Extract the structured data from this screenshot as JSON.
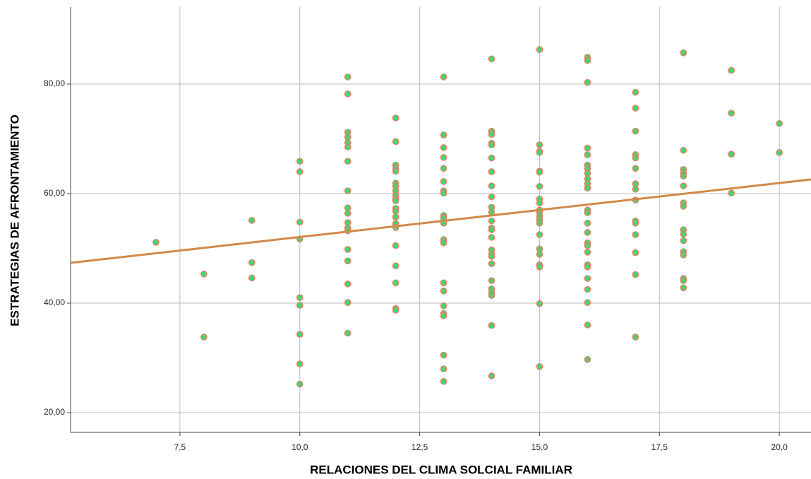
{
  "chart_data": {
    "type": "scatter",
    "x_label": "RELACIONES DEL CLIMA SOLCIAL FAMILIAR",
    "y_label": "ESTRATEGIAS DE AFRONTAMIENTO",
    "xlim": [
      5.22,
      20.66
    ],
    "ylim": [
      16.39,
      94.06
    ],
    "xticks": [
      {
        "value": 7.5,
        "label": "7,5"
      },
      {
        "value": 10,
        "label": "10,0"
      },
      {
        "value": 12.5,
        "label": "12,5"
      },
      {
        "value": 15,
        "label": "15,0"
      },
      {
        "value": 17.5,
        "label": "17,5"
      },
      {
        "value": 20,
        "label": "20,0"
      }
    ],
    "yticks": [
      {
        "value": 20,
        "label": "20,00"
      },
      {
        "value": 40,
        "label": "40,00"
      },
      {
        "value": 60,
        "label": "60,00"
      },
      {
        "value": 80,
        "label": "80,00"
      }
    ],
    "grid": true,
    "color": "#4fd26a",
    "edge_color": "#e57b6b",
    "x": [
      7,
      8,
      8,
      9,
      9,
      9,
      10,
      10,
      10,
      10,
      10,
      10,
      10,
      10,
      10,
      11,
      11,
      11,
      11,
      11,
      11,
      11,
      11,
      11,
      11,
      11,
      11,
      11,
      11,
      11,
      11,
      11,
      11,
      12,
      12,
      12,
      12,
      12,
      12,
      12,
      12,
      12,
      12,
      12,
      12,
      12,
      12,
      12,
      12,
      12,
      12,
      12,
      12,
      12,
      13,
      13,
      13,
      13,
      13,
      13,
      13,
      13,
      13,
      13,
      13,
      13,
      13,
      13,
      13,
      13,
      13,
      13,
      13,
      13,
      13,
      14,
      14,
      14,
      14,
      14,
      14,
      14,
      14,
      14,
      14,
      14,
      14,
      14,
      14,
      14,
      14,
      14,
      14,
      14,
      14,
      14,
      14,
      14,
      14,
      14,
      15,
      15,
      15,
      15,
      15,
      15,
      15,
      15,
      15,
      15,
      15,
      15,
      15,
      15,
      15,
      15,
      15,
      15,
      15,
      15,
      15,
      16,
      16,
      16,
      16,
      16,
      16,
      16,
      16,
      16,
      16,
      16,
      16,
      16,
      16,
      16,
      16,
      16,
      16,
      16,
      16,
      16,
      16,
      16,
      16,
      16,
      17,
      17,
      17,
      17,
      17,
      17,
      17,
      17,
      17,
      17,
      17,
      17,
      17,
      17,
      17,
      18,
      18,
      18,
      18,
      18,
      18,
      18,
      18,
      18,
      18,
      18,
      18,
      18,
      18,
      18,
      18,
      19,
      19,
      19,
      19,
      20,
      20
    ],
    "values": [
      51.1,
      45.3,
      33.8,
      55.1,
      47.4,
      44.6,
      65.9,
      64.0,
      54.8,
      51.7,
      41.0,
      39.6,
      34.3,
      28.9,
      25.2,
      81.3,
      78.2,
      71.2,
      70.3,
      69.3,
      68.5,
      65.9,
      60.5,
      57.4,
      56.4,
      54.7,
      53.7,
      53.2,
      49.8,
      47.7,
      43.5,
      40.1,
      34.5,
      73.8,
      69.5,
      65.2,
      64.6,
      64.1,
      61.9,
      61.3,
      60.5,
      59.7,
      59.1,
      58.7,
      57.3,
      56.8,
      55.7,
      54.5,
      53.8,
      50.5,
      46.8,
      43.7,
      39.0,
      38.7,
      81.3,
      70.7,
      68.4,
      66.6,
      64.6,
      62.2,
      60.5,
      60.1,
      56.0,
      55.5,
      54.6,
      51.6,
      51.0,
      43.7,
      42.2,
      39.5,
      38.1,
      37.7,
      30.5,
      28.0,
      25.7,
      84.6,
      71.4,
      70.8,
      69.2,
      68.9,
      66.5,
      64.0,
      61.4,
      59.4,
      57.5,
      56.6,
      55.0,
      53.7,
      53.4,
      52.0,
      49.7,
      48.9,
      48.5,
      47.2,
      44.1,
      42.6,
      41.9,
      41.4,
      35.9,
      26.7,
      86.3,
      68.9,
      67.7,
      67.5,
      64.1,
      63.9,
      61.3,
      59.0,
      58.3,
      57.0,
      56.6,
      55.9,
      55.2,
      54.6,
      52.5,
      49.9,
      48.9,
      47.0,
      46.6,
      39.9,
      28.4,
      84.9,
      84.3,
      80.3,
      68.3,
      67.1,
      65.2,
      64.5,
      63.7,
      62.7,
      61.8,
      61.0,
      57.0,
      56.5,
      54.6,
      52.9,
      51.0,
      50.5,
      49.3,
      47.0,
      46.6,
      44.5,
      42.5,
      40.1,
      36.0,
      29.7,
      78.5,
      75.6,
      71.4,
      67.1,
      66.5,
      64.6,
      61.8,
      60.8,
      58.8,
      55.0,
      54.6,
      52.5,
      49.2,
      45.2,
      33.8,
      85.7,
      67.9,
      64.4,
      63.7,
      63.2,
      61.4,
      58.3,
      57.7,
      53.4,
      52.6,
      51.4,
      49.4,
      48.8,
      44.5,
      44.1,
      42.8,
      82.5,
      74.7,
      67.2,
      60.1,
      72.8,
      67.5
    ],
    "fit_line": {
      "x": [
        5.22,
        20.66
      ],
      "values": [
        47.35,
        62.58
      ],
      "color": "#d4894a"
    }
  }
}
